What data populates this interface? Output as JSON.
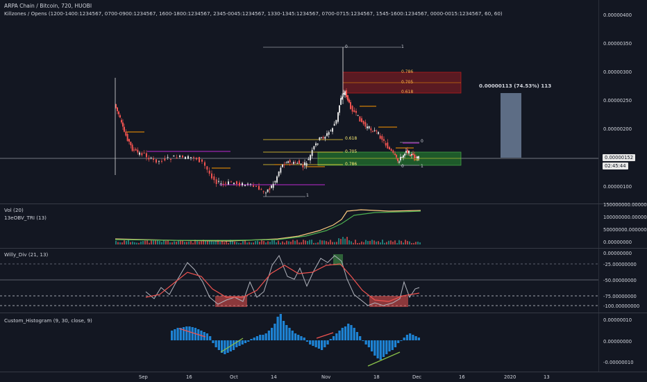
{
  "header": {
    "title": "ARPA Chain / Bitcoin, 720, HUOBI",
    "killzones": "Killzones / Opens (1200-1400:1234567, 0700-0900:1234567, 1600-1800:1234567, 2345-0045:1234567, 1330-1345:1234567, 0700-0715:1234567, 1545-1600:1234567, 0000-0015:1234567, 60, 60)"
  },
  "price_axis": {
    "labels": [
      "0.00000400",
      "0.00000350",
      "0.00000300",
      "0.00000250",
      "0.00000200",
      "0.00000100"
    ],
    "current_price": "0.00000152",
    "countdown": "02:45:44"
  },
  "measure_label": "0.00000113 (74.53%) 113",
  "fib_labels": {
    "top_zero": "0",
    "top_one": "1",
    "r786": "0.786",
    "r705": "0.705",
    "r618": "0.618",
    "low_618": "0.618",
    "low_705": "0.705",
    "low_786": "0.786",
    "right_zero": "0",
    "right_zero_b": "0",
    "right_one": "1",
    "bottom_one": "1"
  },
  "vol_pane": {
    "title": "Vol (20)",
    "subtitle": "13eOBV_TRI (13)",
    "axis": [
      "150000000.00000000",
      "100000000.00000000",
      "50000000.00000000",
      "0.00000000"
    ]
  },
  "willy_pane": {
    "title": "Willy_Div (21, 13)",
    "axis": [
      "0.00000000",
      "-25.00000000",
      "-50.00000000",
      "-75.00000000",
      "-100.00000000"
    ]
  },
  "hist_pane": {
    "title": "Custom_Histogram (9, 30, close, 9)",
    "axis": [
      "0.00000010",
      "0.00000000",
      "-0.00000010"
    ]
  },
  "time_axis": [
    "Sep",
    "16",
    "Oct",
    "14",
    "Nov",
    "18",
    "Dec",
    "16",
    "2020",
    "13"
  ],
  "colors": {
    "background": "#131722",
    "up": "#e0e0e0",
    "down": "#ef5350",
    "fib_red_box": "#5a1a22",
    "fib_green_box": "#1e5a2a",
    "measure_box": "#5d6d85",
    "purple": "#9c27b0",
    "orange": "#ff9800",
    "obv": "#ffcc80",
    "green": "#4caf50"
  }
}
